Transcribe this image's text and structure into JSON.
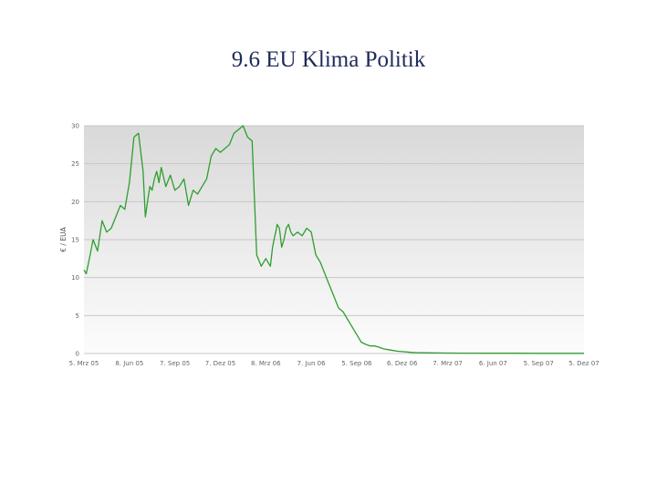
{
  "slide": {
    "title": "9.6 EU Klima Politik"
  },
  "chart_data": {
    "type": "line",
    "title": "",
    "xlabel": "",
    "ylabel": "€ / EUA",
    "ylim": [
      0,
      30
    ],
    "yticks": [
      0,
      5,
      10,
      15,
      20,
      25,
      30
    ],
    "grid": true,
    "x_tick_labels": [
      "5. Mrz 05",
      "8. Jun 05",
      "7. Sep 05",
      "7. Dez 05",
      "8. Mrz 06",
      "7. Jun 06",
      "5. Sep 06",
      "6. Dez 06",
      "7. Mrz 07",
      "6. Jun 07",
      "5. Sep 07",
      "5. Dez 07"
    ],
    "line_color": "#2e9e2e",
    "series": [
      {
        "x": [
          0,
          0.05,
          0.12,
          0.2,
          0.3,
          0.4,
          0.5,
          0.6,
          0.7,
          0.8,
          0.9,
          1.0,
          1.1,
          1.2,
          1.3,
          1.35,
          1.4,
          1.45,
          1.5,
          1.55,
          1.6,
          1.65,
          1.7,
          1.8,
          1.9,
          2.0,
          2.1,
          2.2,
          2.3,
          2.4,
          2.5,
          2.6,
          2.7,
          2.8,
          2.9,
          3.0,
          3.1,
          3.2,
          3.3,
          3.4,
          3.5,
          3.6,
          3.7,
          3.8,
          3.9,
          4.0,
          4.1,
          4.15,
          4.2,
          4.22,
          4.25,
          4.3,
          4.35,
          4.4,
          4.45,
          4.5,
          4.55,
          4.6,
          4.7,
          4.8,
          4.9,
          5.0,
          5.1,
          5.2,
          5.3,
          5.4,
          5.5,
          5.6,
          5.7,
          5.8,
          5.9,
          6.0,
          6.1,
          6.2,
          6.3,
          6.4,
          6.5,
          6.6,
          6.7,
          6.8,
          6.9,
          7.0,
          7.1,
          7.2,
          7.3,
          7.4,
          7.5,
          7.6,
          7.8,
          8.0,
          8.3,
          8.6,
          9.0,
          9.5,
          10.0,
          10.5,
          11.0
        ],
        "y": [
          11,
          10.5,
          12.5,
          15,
          13.5,
          17.5,
          16,
          16.5,
          18,
          19.5,
          19,
          22.5,
          28.5,
          29,
          24,
          18,
          20,
          22,
          21.5,
          23,
          24,
          22.5,
          24.5,
          22,
          23.5,
          21.5,
          22,
          23,
          19.5,
          21.5,
          21,
          22,
          23,
          26,
          27,
          26.5,
          27,
          27.5,
          29,
          29.5,
          30,
          28.5,
          28,
          13,
          11.5,
          12.5,
          11.5,
          14,
          15.5,
          16,
          17,
          16.5,
          14,
          15,
          16.5,
          17,
          16,
          15.5,
          16,
          15.5,
          16.5,
          16,
          13,
          12,
          10.5,
          9,
          7.5,
          6,
          5.5,
          4.5,
          3.5,
          2.5,
          1.5,
          1.2,
          1.0,
          1.0,
          0.8,
          0.6,
          0.5,
          0.4,
          0.3,
          0.25,
          0.2,
          0.15,
          0.12,
          0.1,
          0.1,
          0.08,
          0.07,
          0.06,
          0.05,
          0.05,
          0.04,
          0.04,
          0.03,
          0.03,
          0.03
        ]
      }
    ]
  }
}
